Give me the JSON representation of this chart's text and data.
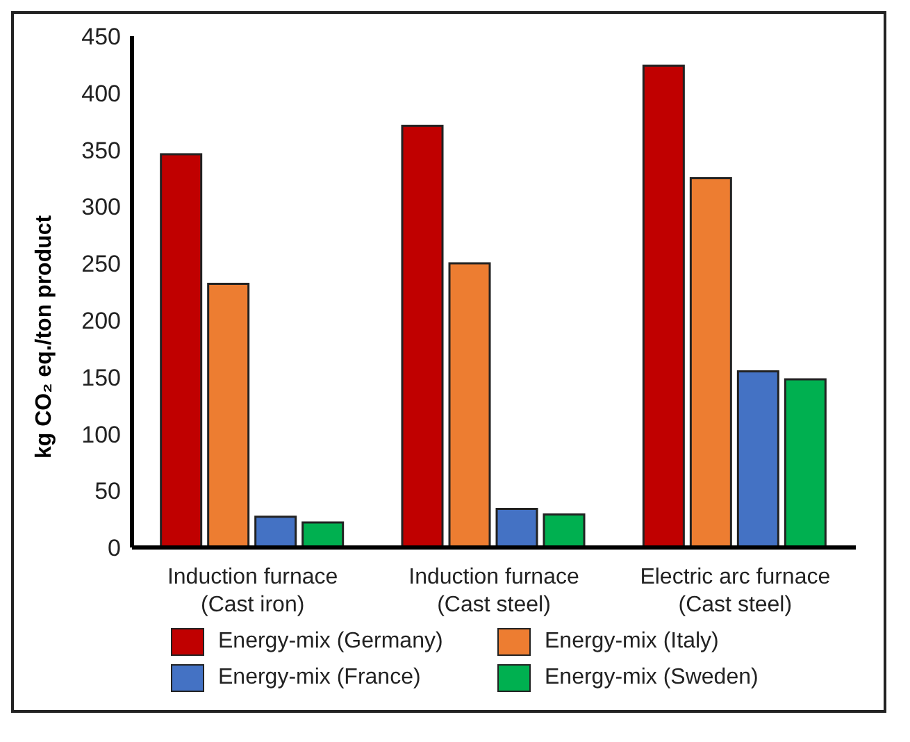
{
  "chart_data": {
    "type": "bar",
    "ylabel": "kg CO₂ eq./ton product",
    "categories": [
      "Induction furnace\n(Cast iron)",
      "Induction furnace\n(Cast steel)",
      "Electric arc furnace\n(Cast steel)"
    ],
    "series": [
      {
        "name": "Energy-mix (Germany)",
        "color": "#c00000",
        "values": [
          346,
          371,
          424
        ]
      },
      {
        "name": "Energy-mix (Italy)",
        "color": "#ed7d31",
        "values": [
          232,
          250,
          325
        ]
      },
      {
        "name": "Energy-mix (France)",
        "color": "#4472c4",
        "values": [
          27,
          34,
          155
        ]
      },
      {
        "name": "Energy-mix (Sweden)",
        "color": "#00b050",
        "values": [
          22,
          29,
          148
        ]
      }
    ],
    "ylim": [
      0,
      450
    ],
    "yticks": [
      0,
      50,
      100,
      150,
      200,
      250,
      300,
      350,
      400,
      450
    ],
    "grid": false,
    "legend": "bottom"
  }
}
